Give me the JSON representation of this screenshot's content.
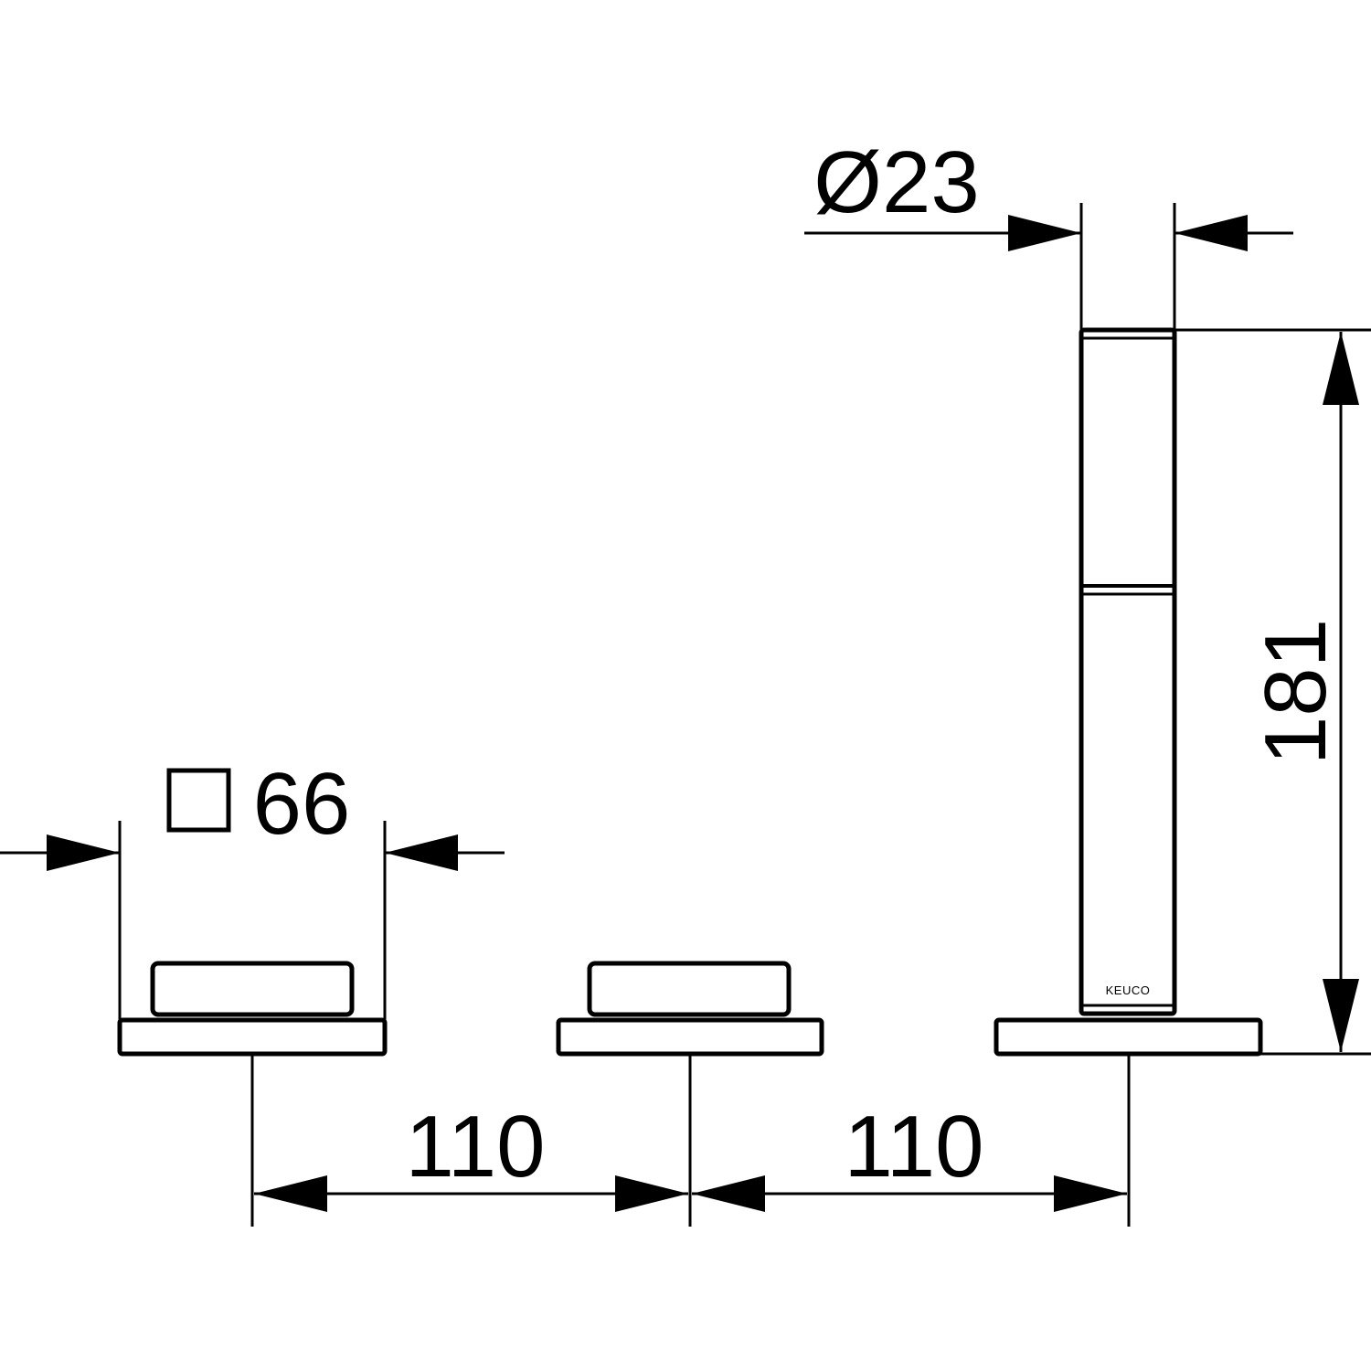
{
  "colors": {
    "line": "#000000",
    "background": "#ffffff"
  },
  "dimensions": {
    "spout_diameter": "Ø23",
    "spout_height": "181",
    "handle_square_symbol": "square-symbol",
    "handle_square_size": "66",
    "spacing_left": "110",
    "spacing_right": "110"
  },
  "logo": {
    "text": "KEUCO"
  }
}
